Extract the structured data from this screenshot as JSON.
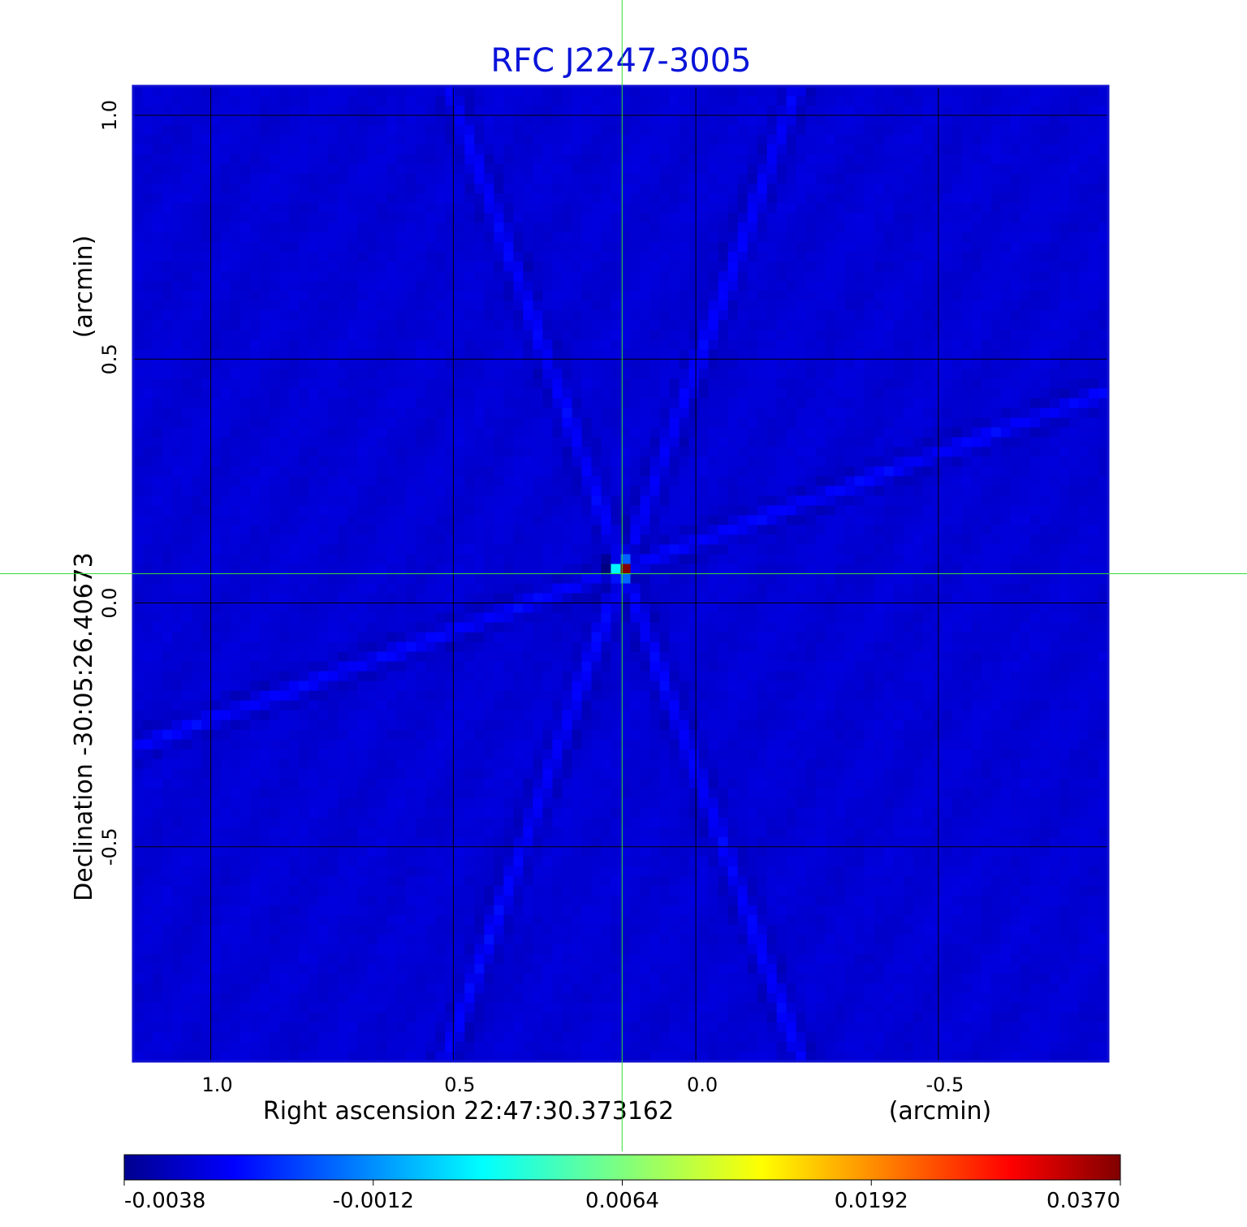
{
  "chart_data": {
    "type": "heatmap",
    "title": "RFC J2247-3005",
    "xlabel": "Right ascension  22:47:30.373162",
    "xunit": "(arcmin)",
    "ylabel": "Declination  -30:05:26.40673",
    "yunit": "(arcmin)",
    "xlim": [
      1.16,
      -0.85
    ],
    "ylim": [
      -0.94,
      1.06
    ],
    "xticks": [
      1.0,
      0.5,
      0.0,
      -0.5
    ],
    "xtick_labels": [
      "1.0",
      "0.5",
      "0.0",
      "-0.5"
    ],
    "yticks": [
      1.0,
      0.5,
      0.0,
      -0.5
    ],
    "ytick_labels": [
      "1.0",
      "0.5",
      "0.0",
      "-0.5"
    ],
    "grid": true,
    "crosshair": {
      "x": 0.152,
      "y": 0.06
    },
    "source_peak": {
      "x": 0.15,
      "y": 0.07,
      "value": 0.037
    },
    "colorbar": {
      "colormap": "jet",
      "min": -0.0038,
      "max": 0.037,
      "ticks": [
        -0.0038,
        -0.0012,
        0.0064,
        0.0192,
        0.037
      ],
      "tick_labels": [
        "-0.0038",
        "-0.0012",
        "0.0064",
        "0.0192",
        "0.0370"
      ]
    },
    "colors": {
      "title": "#0a14d8",
      "frame": "#1010d0",
      "grid": "#000000",
      "crosshair": "#33dd33",
      "background": "#00c8ff"
    }
  }
}
